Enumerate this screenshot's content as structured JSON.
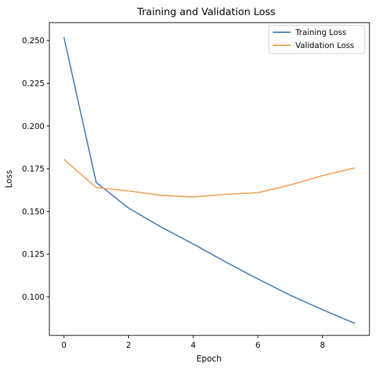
{
  "chart_data": {
    "type": "line",
    "title": "Training and Validation Loss",
    "xlabel": "Epoch",
    "ylabel": "Loss",
    "xlim": [
      -0.45,
      9.45
    ],
    "ylim": [
      0.0775,
      0.2605
    ],
    "xticks": [
      0,
      2,
      4,
      6,
      8
    ],
    "xtick_labels": [
      "0",
      "2",
      "4",
      "6",
      "8"
    ],
    "yticks": [
      0.1,
      0.125,
      0.15,
      0.175,
      0.2,
      0.225,
      0.25
    ],
    "ytick_labels": [
      "0.100",
      "0.125",
      "0.150",
      "0.175",
      "0.200",
      "0.225",
      "0.250"
    ],
    "x": [
      0,
      1,
      2,
      3,
      4,
      5,
      6,
      7,
      8,
      9
    ],
    "series": [
      {
        "name": "Training Loss",
        "color": "#4b7fb8",
        "values": [
          0.252,
          0.167,
          0.152,
          0.141,
          0.131,
          0.1205,
          0.1105,
          0.101,
          0.0925,
          0.0845
        ]
      },
      {
        "name": "Validation Loss",
        "color": "#f0a35c",
        "values": [
          0.1805,
          0.164,
          0.162,
          0.1595,
          0.1585,
          0.16,
          0.161,
          0.1655,
          0.171,
          0.1755
        ]
      }
    ],
    "grid": false,
    "legend_position": "top-right"
  }
}
